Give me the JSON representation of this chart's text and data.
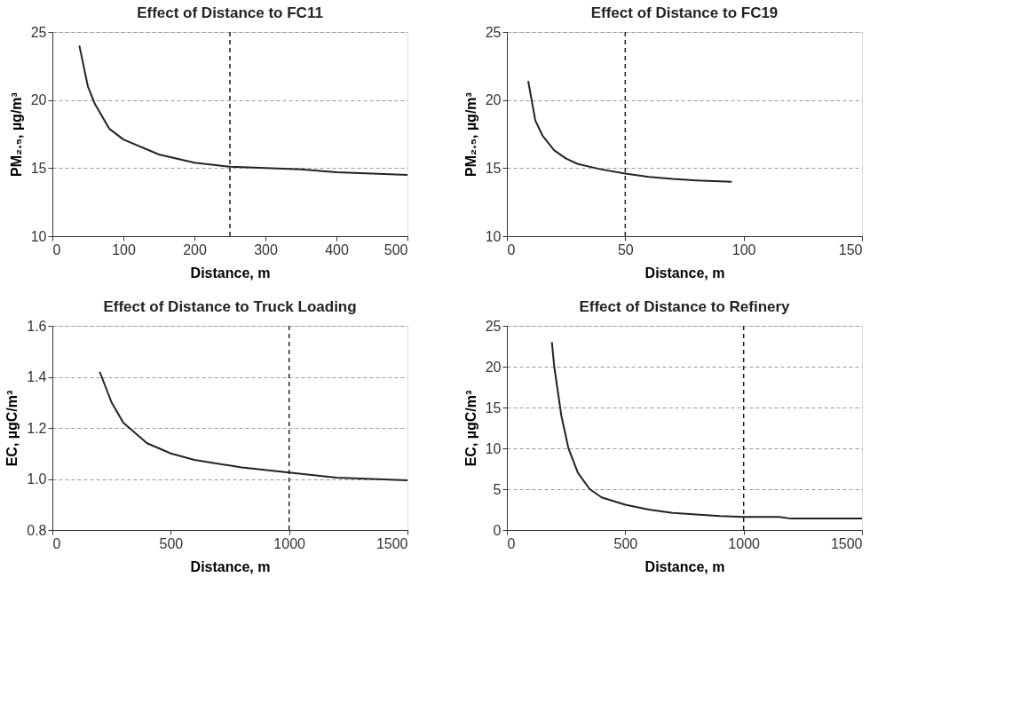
{
  "chart_data": [
    {
      "type": "line",
      "title": "Effect of Distance to FC11",
      "xlabel": "Distance, m",
      "ylabel": "PM₂.₅, µg/m³",
      "x": [
        38,
        50,
        60,
        80,
        100,
        150,
        200,
        250,
        300,
        350,
        400,
        450,
        500
      ],
      "series": [
        {
          "color": "#222222",
          "values": [
            24,
            21,
            19.7,
            17.9,
            17.1,
            16,
            15.4,
            15.1,
            15,
            14.9,
            14.7,
            14.6,
            14.5
          ]
        }
      ],
      "xlim": [
        0,
        500
      ],
      "xticks": [
        0,
        100,
        200,
        300,
        400,
        500
      ],
      "ylim": [
        10,
        25
      ],
      "yticks": [
        10,
        15,
        20,
        25
      ],
      "grid": "y",
      "line_style": "solid",
      "marker": "none",
      "ref_lines": [
        {
          "axis": "x",
          "value": 250,
          "color": "#222222",
          "line_style": "dashed"
        }
      ]
    },
    {
      "type": "line",
      "title": "Effect of Distance to FC19",
      "xlabel": "Distance, m",
      "ylabel": "PM₂.₅, µg/m³",
      "x": [
        9,
        12,
        15,
        20,
        25,
        30,
        40,
        50,
        60,
        70,
        80,
        95
      ],
      "series": [
        {
          "color": "#222222",
          "values": [
            21.4,
            18.5,
            17.4,
            16.3,
            15.7,
            15.3,
            14.9,
            14.6,
            14.35,
            14.2,
            14.1,
            14
          ]
        }
      ],
      "xlim": [
        0,
        150
      ],
      "xticks": [
        0,
        50,
        100,
        150
      ],
      "ylim": [
        10,
        25
      ],
      "yticks": [
        10,
        15,
        20,
        25
      ],
      "grid": "y",
      "line_style": "solid",
      "marker": "none",
      "ref_lines": [
        {
          "axis": "x",
          "value": 50,
          "color": "#222222",
          "line_style": "dashed"
        }
      ]
    },
    {
      "type": "line",
      "title": "Effect of Distance to Truck Loading",
      "xlabel": "Distance, m",
      "ylabel": "EC, µgC/m³",
      "x": [
        200,
        250,
        300,
        400,
        500,
        600,
        800,
        1000,
        1200,
        1500
      ],
      "series": [
        {
          "color": "#222222",
          "values": [
            1.42,
            1.3,
            1.22,
            1.14,
            1.1,
            1.075,
            1.045,
            1.025,
            1.005,
            0.995
          ]
        }
      ],
      "xlim": [
        0,
        1500
      ],
      "xticks": [
        0,
        500,
        1000,
        1500
      ],
      "ylim": [
        0.8,
        1.6
      ],
      "yticks": [
        0.8,
        {
          "value": 1,
          "label": "1.0"
        },
        1.2,
        1.4,
        1.6
      ],
      "grid": "y",
      "line_style": "solid",
      "marker": "none",
      "ref_lines": [
        {
          "axis": "x",
          "value": 1000,
          "color": "#222222",
          "line_style": "dashed"
        }
      ]
    },
    {
      "type": "line",
      "title": "Effect of Distance to Refinery",
      "xlabel": "Distance, m",
      "ylabel": "EC, µgC/m³",
      "x": [
        190,
        200,
        230,
        260,
        300,
        350,
        400,
        500,
        600,
        700,
        800,
        900,
        1000,
        1150,
        1200,
        1500
      ],
      "series": [
        {
          "color": "#222222",
          "values": [
            23,
            20,
            14,
            10,
            7,
            5,
            4,
            3.1,
            2.5,
            2.1,
            1.9,
            1.7,
            1.6,
            1.6,
            1.4,
            1.4
          ]
        }
      ],
      "xlim": [
        0,
        1500
      ],
      "xticks": [
        0,
        500,
        1000,
        1500
      ],
      "ylim": [
        0,
        25
      ],
      "yticks": [
        0,
        5,
        10,
        15,
        20,
        25
      ],
      "grid": "y",
      "line_style": "solid",
      "marker": "none",
      "ref_lines": [
        {
          "axis": "x",
          "value": 1000,
          "color": "#222222",
          "line_style": "dashed"
        }
      ]
    }
  ]
}
